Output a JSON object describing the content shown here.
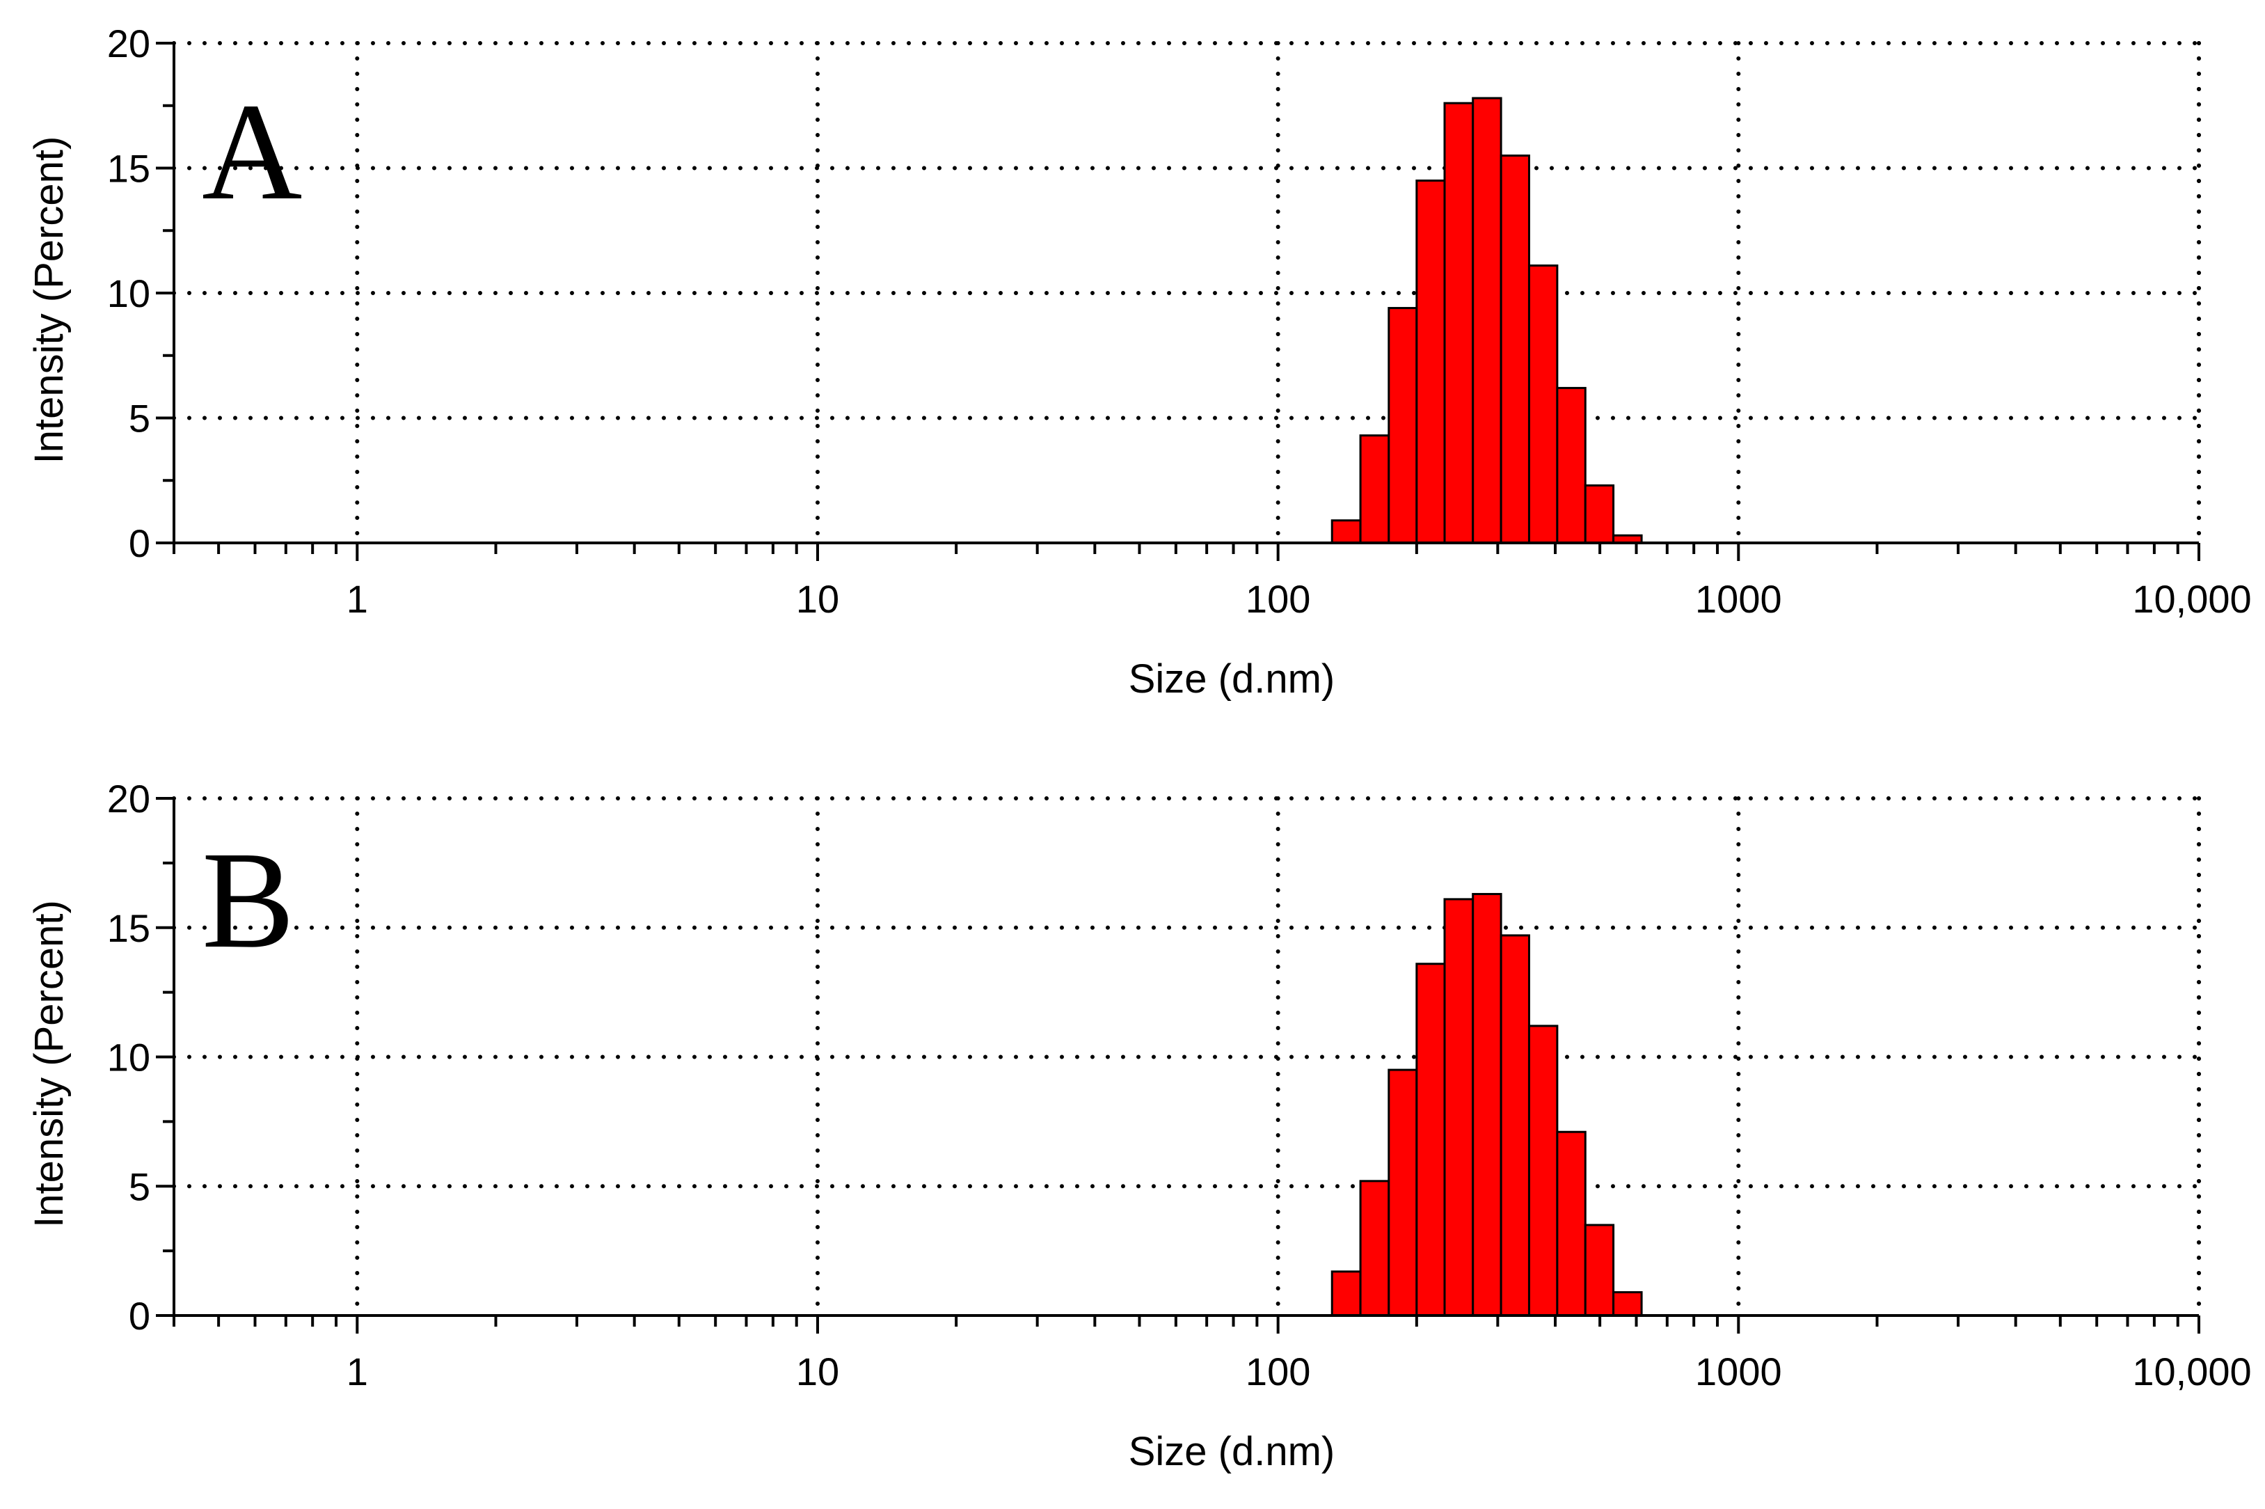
{
  "chart_data": [
    {
      "type": "bar",
      "panel_label": "A",
      "xlabel": "Size (d.nm)",
      "ylabel": "Intensity (Percent)",
      "x_scale": "log",
      "xlim": [
        0.4,
        10000
      ],
      "ylim": [
        0,
        20
      ],
      "x_ticks": [
        1,
        10,
        100,
        1000,
        10000
      ],
      "x_tick_labels": [
        "1",
        "10",
        "100",
        "1000",
        "10,000"
      ],
      "y_ticks": [
        0,
        5,
        10,
        15,
        20
      ],
      "y_tick_labels": [
        "0",
        "5",
        "10",
        "15",
        "20"
      ],
      "grid": true,
      "bar_color": "#ff0000",
      "bin_edges": [
        131,
        151,
        174,
        200,
        230,
        265,
        305,
        351,
        404,
        465,
        535,
        616,
        710
      ],
      "values": [
        0.9,
        4.3,
        9.4,
        14.5,
        17.6,
        17.8,
        15.5,
        11.1,
        6.2,
        2.3,
        0.3,
        0.0
      ]
    },
    {
      "type": "bar",
      "panel_label": "B",
      "xlabel": "Size (d.nm)",
      "ylabel": "Intensity (Percent)",
      "x_scale": "log",
      "xlim": [
        0.4,
        10000
      ],
      "ylim": [
        0,
        20
      ],
      "x_ticks": [
        1,
        10,
        100,
        1000,
        10000
      ],
      "x_tick_labels": [
        "1",
        "10",
        "100",
        "1000",
        "10,000"
      ],
      "y_ticks": [
        0,
        5,
        10,
        15,
        20
      ],
      "y_tick_labels": [
        "0",
        "5",
        "10",
        "15",
        "20"
      ],
      "grid": true,
      "bar_color": "#ff0000",
      "bin_edges": [
        131,
        151,
        174,
        200,
        230,
        265,
        305,
        351,
        404,
        465,
        535,
        616,
        710
      ],
      "values": [
        1.7,
        5.2,
        9.5,
        13.6,
        16.1,
        16.3,
        14.7,
        11.2,
        7.1,
        3.5,
        0.9,
        0.0
      ]
    }
  ]
}
